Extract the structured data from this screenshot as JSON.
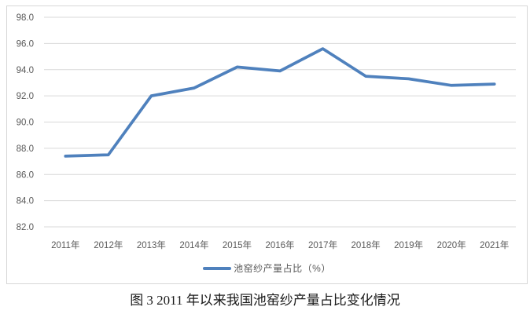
{
  "figure": {
    "caption": "图 3  2011 年以来我国池窑纱产量占比变化情况"
  },
  "chart_data": {
    "type": "line",
    "title": "",
    "xlabel": "",
    "ylabel": "",
    "categories": [
      "2011年",
      "2012年",
      "2013年",
      "2014年",
      "2015年",
      "2016年",
      "2017年",
      "2018年",
      "2019年",
      "2020年",
      "2021年"
    ],
    "series": [
      {
        "name": "池窑纱产量占比（%）",
        "values": [
          87.4,
          87.5,
          92.0,
          92.6,
          94.2,
          93.9,
          95.6,
          93.5,
          93.3,
          92.8,
          92.9
        ]
      }
    ],
    "ylim": [
      82.0,
      98.0
    ],
    "ytick_step": 2.0,
    "ytick_labels": [
      "82.0",
      "84.0",
      "86.0",
      "88.0",
      "90.0",
      "92.0",
      "94.0",
      "96.0",
      "98.0"
    ],
    "grid": true,
    "legend_position": "bottom",
    "colors": {
      "line": "#4f81bd",
      "gridline": "#d9d9d9",
      "axis_text": "#595959",
      "frame_border": "#d7d7d7",
      "background": "#ffffff"
    }
  }
}
